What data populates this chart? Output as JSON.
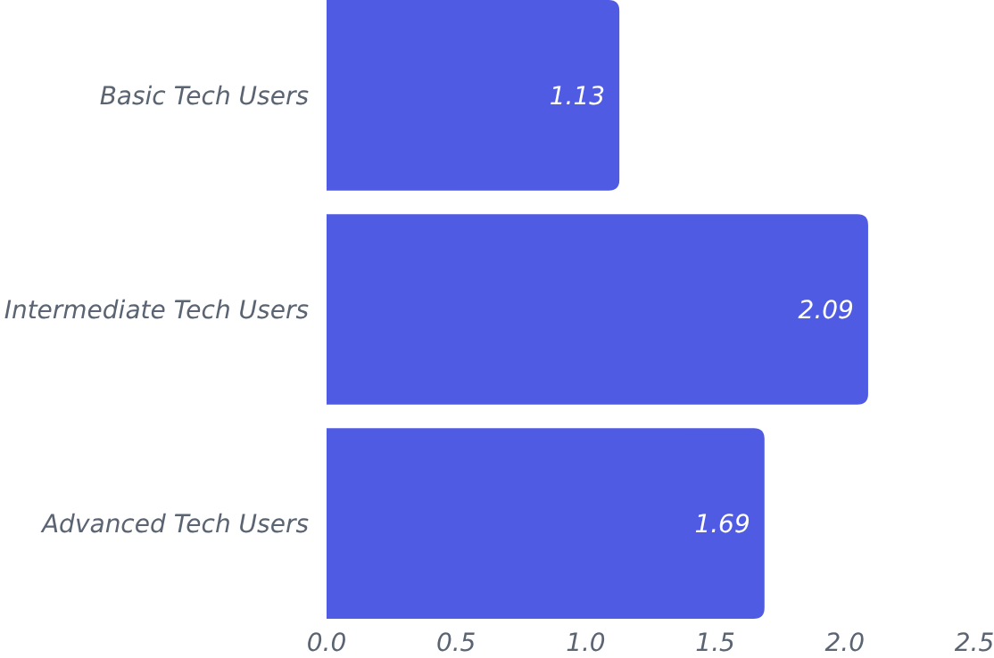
{
  "chart_data": {
    "type": "bar",
    "orientation": "horizontal",
    "categories": [
      "Basic Tech Users",
      "Intermediate Tech Users",
      "Advanced Tech Users"
    ],
    "values": [
      1.13,
      2.09,
      1.69
    ],
    "color": "#4f5be3",
    "data_labels": true,
    "grid": false,
    "xlim": [
      0,
      2.5
    ],
    "xticks": [
      {
        "value": 0,
        "label": "0.0"
      },
      {
        "value": 0.5,
        "label": "0.5"
      },
      {
        "value": 1,
        "label": "1.0"
      },
      {
        "value": 1.5,
        "label": "1.5"
      },
      {
        "value": 2,
        "label": "2.0"
      },
      {
        "value": 2.5,
        "label": "2.5"
      }
    ]
  }
}
